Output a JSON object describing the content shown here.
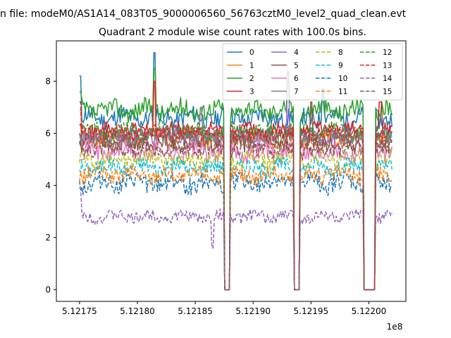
{
  "figure": {
    "suptitle": "n file: modeM0/AS1A14_083T05_9000006560_56763cztM0_level2_quad_clean.evt",
    "title": "Quadrant 2 module wise count rates with 100.0s bins.",
    "offset_label": "1e8"
  },
  "chart_data": {
    "type": "line",
    "title": "Quadrant 2 module wise count rates with 100.0s bins.",
    "xlabel": "",
    "ylabel": "",
    "xlim": [
      5.12173,
      5.122032
    ],
    "ylim": [
      -0.45,
      9.55
    ],
    "x_ticks": [
      5.12175,
      5.1218,
      5.12185,
      5.1219,
      5.12195,
      5.122
    ],
    "x_tick_labels": [
      "5.12175",
      "5.12180",
      "5.12185",
      "5.12190",
      "5.12195",
      "5.12200"
    ],
    "y_ticks": [
      0,
      2,
      4,
      6,
      8
    ],
    "y_tick_labels": [
      "0",
      "2",
      "4",
      "6",
      "8"
    ],
    "x_range": [
      5.12175,
      5.12202
    ],
    "n_points": 270,
    "gaps": [
      [
        5.121875,
        5.12188
      ],
      [
        5.121935,
        5.12194
      ],
      [
        5.121995,
        5.122005
      ]
    ],
    "grid": false,
    "legend": {
      "location": "top-right",
      "columns": 4
    },
    "series": [
      {
        "name": "0",
        "color": "#1f77b4",
        "dash": "solid",
        "mean": 6.6,
        "noise": 0.35,
        "seed": 11,
        "spikes": [
          [
            5.12175,
            8.2
          ],
          [
            5.121815,
            9.1
          ],
          [
            5.12196,
            7.7
          ]
        ]
      },
      {
        "name": "1",
        "color": "#ff7f0e",
        "dash": "solid",
        "mean": 5.8,
        "noise": 0.3,
        "seed": 23,
        "spikes": [
          [
            5.12175,
            6.9
          ],
          [
            5.121815,
            7.8
          ]
        ]
      },
      {
        "name": "2",
        "color": "#2ca02c",
        "dash": "solid",
        "mean": 6.9,
        "noise": 0.35,
        "seed": 37,
        "spikes": [
          [
            5.12175,
            7.6
          ],
          [
            5.121815,
            8.5
          ],
          [
            5.12193,
            8.3
          ]
        ]
      },
      {
        "name": "3",
        "color": "#d62728",
        "dash": "solid",
        "mean": 6.1,
        "noise": 0.28,
        "seed": 41,
        "spikes": [
          [
            5.121815,
            8.0
          ],
          [
            5.12201,
            7.2
          ]
        ]
      },
      {
        "name": "4",
        "color": "#9467bd",
        "dash": "solid",
        "mean": 5.9,
        "noise": 0.3,
        "seed": 53,
        "spikes": [
          [
            5.12193,
            8.4
          ]
        ]
      },
      {
        "name": "5",
        "color": "#8c564b",
        "dash": "solid",
        "mean": 5.6,
        "noise": 0.3,
        "seed": 61,
        "spikes": [
          [
            5.12195,
            7.2
          ]
        ]
      },
      {
        "name": "6",
        "color": "#e377c2",
        "dash": "solid",
        "mean": 5.3,
        "noise": 0.35,
        "seed": 71,
        "spikes": []
      },
      {
        "name": "7",
        "color": "#7f7f7f",
        "dash": "solid",
        "mean": 5.9,
        "noise": 0.32,
        "seed": 83,
        "spikes": [
          [
            5.121855,
            7.0
          ]
        ]
      },
      {
        "name": "8",
        "color": "#bcbd22",
        "dash": "dashed",
        "mean": 5.0,
        "noise": 0.3,
        "seed": 97,
        "spikes": []
      },
      {
        "name": "9",
        "color": "#17becf",
        "dash": "dashed",
        "mean": 4.7,
        "noise": 0.3,
        "seed": 101,
        "spikes": []
      },
      {
        "name": "10",
        "color": "#1f77b4",
        "dash": "dashed",
        "mean": 4.1,
        "noise": 0.35,
        "seed": 113,
        "spikes": []
      },
      {
        "name": "11",
        "color": "#ff7f0e",
        "dash": "dashed",
        "mean": 4.4,
        "noise": 0.3,
        "seed": 127,
        "spikes": []
      },
      {
        "name": "12",
        "color": "#2ca02c",
        "dash": "dashed",
        "mean": 6.1,
        "noise": 0.28,
        "seed": 131,
        "spikes": []
      },
      {
        "name": "13",
        "color": "#d62728",
        "dash": "dashed",
        "mean": 6.0,
        "noise": 0.28,
        "seed": 149,
        "spikes": [
          [
            5.12175,
            7.2
          ]
        ]
      },
      {
        "name": "14",
        "color": "#9467bd",
        "dash": "dashed",
        "mean": 2.8,
        "noise": 0.22,
        "seed": 151,
        "spikes": [
          [
            5.12175,
            3.9
          ],
          [
            5.121865,
            1.6
          ]
        ]
      },
      {
        "name": "15",
        "color": "#8c564b",
        "dash": "dashed",
        "mean": 5.4,
        "noise": 0.3,
        "seed": 163,
        "spikes": []
      }
    ]
  }
}
